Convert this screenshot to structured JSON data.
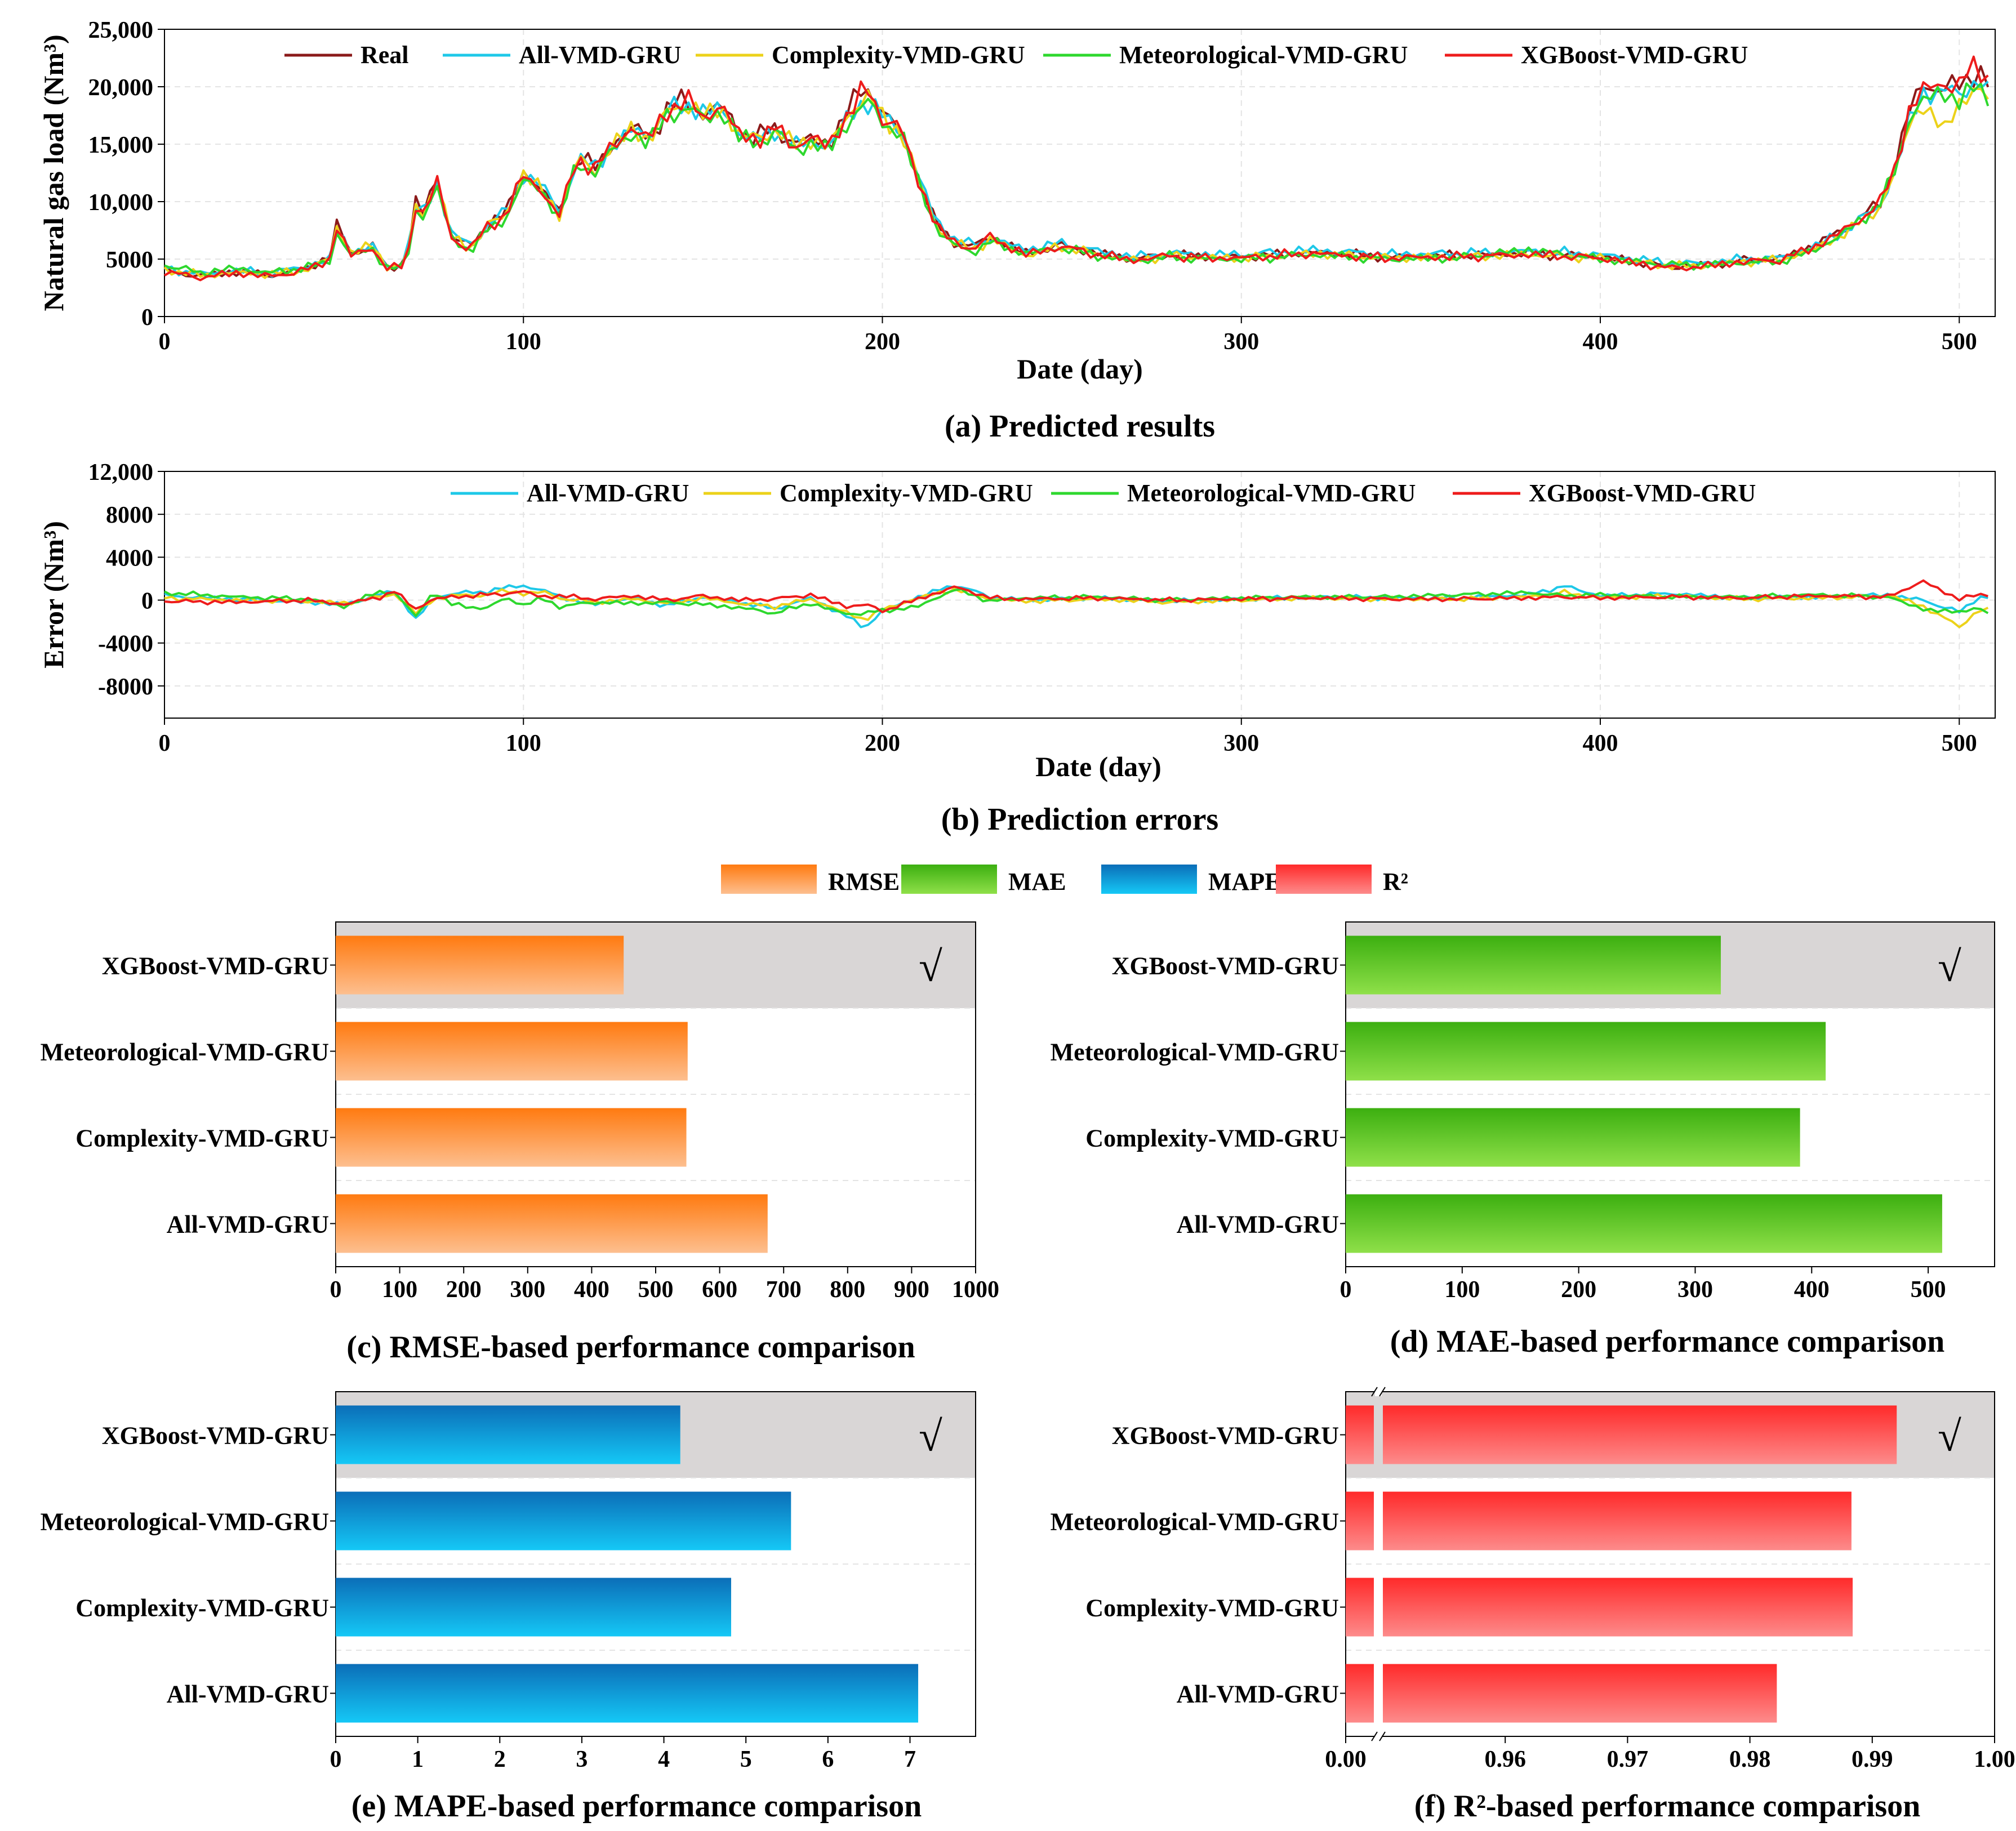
{
  "chart_data": [
    {
      "type": "line",
      "caption": "(a) Predicted results",
      "xlabel": "Date (day)",
      "ylabel": "Natural gas load (Nm³)",
      "xlim": [
        0,
        510
      ],
      "ylim": [
        0,
        25000
      ],
      "xticks": [
        "0",
        "100",
        "200",
        "300",
        "400",
        "500"
      ],
      "yticks": [
        "0",
        "5000",
        "10,000",
        "15,000",
        "20,000",
        "25,000"
      ],
      "legend_position": "top",
      "anchor_x": [
        0,
        10,
        20,
        30,
        40,
        46,
        48,
        52,
        58,
        62,
        66,
        68,
        70,
        72,
        76,
        80,
        85,
        90,
        95,
        100,
        104,
        110,
        115,
        120,
        125,
        130,
        135,
        140,
        145,
        150,
        155,
        160,
        165,
        170,
        175,
        180,
        185,
        190,
        195,
        200,
        205,
        210,
        215,
        220,
        225,
        230,
        240,
        250,
        260,
        270,
        280,
        290,
        300,
        320,
        340,
        360,
        380,
        400,
        420,
        430,
        440,
        450,
        460,
        470,
        478,
        482,
        486,
        490,
        496,
        500,
        505,
        508
      ],
      "series": [
        {
          "name": "Real",
          "color": "#8b1a1a",
          "values": [
            4000,
            3500,
            3900,
            3600,
            4200,
            5200,
            8000,
            5500,
            6200,
            4200,
            4500,
            6000,
            10000,
            9000,
            12000,
            7000,
            6000,
            8000,
            9000,
            12500,
            11500,
            9000,
            14000,
            13000,
            15000,
            16500,
            15500,
            18000,
            19000,
            17500,
            18500,
            16000,
            15500,
            16500,
            15000,
            15500,
            15000,
            17500,
            20500,
            17500,
            16500,
            12000,
            8000,
            6500,
            6000,
            7000,
            5500,
            6200,
            5500,
            5000,
            5400,
            5200,
            5200,
            5600,
            5200,
            5300,
            5500,
            5200,
            4300,
            4500,
            4900,
            5000,
            6200,
            8000,
            10000,
            13000,
            18000,
            20000,
            20000,
            20000,
            21500,
            20500
          ]
        },
        {
          "name": "All-VMD-GRU",
          "color": "#1ec8e8",
          "values": [
            4200,
            3700,
            4000,
            3800,
            4400,
            5000,
            7500,
            5700,
            6000,
            4500,
            4400,
            6200,
            9500,
            9200,
            11500,
            7200,
            6200,
            7800,
            9200,
            12200,
            11800,
            9200,
            13500,
            13200,
            14800,
            16200,
            15800,
            17800,
            18600,
            17700,
            18200,
            16100,
            15200,
            16400,
            14800,
            15300,
            14700,
            17000,
            19000,
            17400,
            16400,
            12300,
            8200,
            6800,
            6200,
            6800,
            5800,
            6400,
            5700,
            5200,
            5500,
            5400,
            5400,
            5800,
            5400,
            5500,
            5700,
            5400,
            4600,
            4700,
            5000,
            5100,
            6100,
            7800,
            9800,
            12500,
            17000,
            19500,
            19500,
            19500,
            20500,
            19500
          ]
        },
        {
          "name": "Complexity-VMD-GRU",
          "color": "#ecd21a",
          "values": [
            4100,
            3600,
            3800,
            3700,
            4100,
            5100,
            7700,
            5600,
            6100,
            4400,
            4300,
            5900,
            9700,
            8900,
            11700,
            6900,
            5900,
            7900,
            8800,
            12300,
            11400,
            8900,
            13700,
            12800,
            14900,
            16300,
            15400,
            17700,
            18700,
            17400,
            18300,
            15900,
            15400,
            16300,
            14900,
            15400,
            14800,
            17200,
            19500,
            17300,
            16200,
            12000,
            7800,
            6400,
            5800,
            6700,
            5300,
            6100,
            5400,
            4900,
            5300,
            5100,
            5100,
            5500,
            5100,
            5200,
            5400,
            5100,
            4400,
            4400,
            4800,
            4900,
            5900,
            7600,
            9600,
            12300,
            16800,
            18500,
            16000,
            19000,
            19500,
            19000
          ]
        },
        {
          "name": "Meteorological-VMD-GRU",
          "color": "#2ed82e",
          "values": [
            4500,
            3800,
            4200,
            3800,
            4300,
            4800,
            7200,
            5400,
            5800,
            4300,
            4200,
            5700,
            9200,
            8700,
            11200,
            6800,
            5700,
            7500,
            8500,
            11800,
            11200,
            8800,
            13200,
            12700,
            14500,
            15900,
            15200,
            17400,
            18300,
            17200,
            17900,
            15700,
            15000,
            16100,
            14600,
            15000,
            14500,
            16700,
            18800,
            17000,
            16000,
            11800,
            7600,
            6200,
            5600,
            6500,
            5500,
            6000,
            5300,
            4800,
            5200,
            5000,
            5000,
            5400,
            5000,
            5100,
            5800,
            5000,
            4500,
            4500,
            4700,
            4800,
            5800,
            7700,
            9900,
            12600,
            17200,
            19000,
            19200,
            19200,
            19800,
            19000
          ]
        },
        {
          "name": "XGBoost-VMD-GRU",
          "color": "#ee1c1c",
          "values": [
            3900,
            3400,
            3800,
            3500,
            4100,
            5000,
            7800,
            5300,
            6000,
            4100,
            4400,
            5900,
            9800,
            8800,
            11800,
            6800,
            5800,
            7800,
            8800,
            12300,
            11300,
            8800,
            13800,
            12900,
            14900,
            16400,
            15400,
            17900,
            18900,
            17400,
            18400,
            15900,
            15400,
            16400,
            14900,
            15400,
            14900,
            17300,
            20000,
            17400,
            16400,
            11900,
            7900,
            6400,
            5900,
            6900,
            5400,
            6100,
            5400,
            4900,
            5300,
            5100,
            5100,
            5500,
            5100,
            5200,
            5400,
            5100,
            4200,
            4400,
            4800,
            4900,
            6100,
            7900,
            9900,
            12900,
            17800,
            19800,
            20200,
            20300,
            21800,
            20800
          ]
        }
      ]
    },
    {
      "type": "line",
      "caption": "(b) Prediction errors",
      "xlabel": "Date (day)",
      "ylabel": "Error (Nm³)",
      "xlim": [
        0,
        510
      ],
      "ylim": [
        -11000,
        12000
      ],
      "xticks": [
        "0",
        "100",
        "200",
        "300",
        "400",
        "500"
      ],
      "yticks": [
        "-8000",
        "-4000",
        "0",
        "4000",
        "8000",
        "12,000"
      ],
      "legend_position": "top",
      "anchor_x": [
        0,
        20,
        40,
        50,
        60,
        64,
        70,
        75,
        80,
        90,
        95,
        100,
        105,
        110,
        120,
        130,
        140,
        150,
        160,
        170,
        180,
        190,
        195,
        200,
        210,
        220,
        225,
        230,
        240,
        260,
        280,
        300,
        320,
        340,
        360,
        380,
        390,
        400,
        420,
        440,
        460,
        480,
        485,
        490,
        495,
        500,
        505,
        508
      ],
      "series": [
        {
          "name": "All-VMD-GRU",
          "color": "#1ec8e8",
          "values": [
            400,
            100,
            -200,
            -400,
            500,
            900,
            -1800,
            200,
            600,
            800,
            1200,
            1300,
            1000,
            300,
            -400,
            200,
            -500,
            300,
            -200,
            -800,
            200,
            -1500,
            -2600,
            -1000,
            300,
            1400,
            900,
            300,
            0,
            200,
            -100,
            100,
            300,
            200,
            200,
            500,
            1300,
            400,
            600,
            200,
            300,
            500,
            200,
            0,
            -600,
            -1100,
            200,
            300
          ]
        },
        {
          "name": "Complexity-VMD-GRU",
          "color": "#ecd21a",
          "values": [
            200,
            0,
            -100,
            -300,
            300,
            600,
            -1200,
            100,
            400,
            500,
            900,
            600,
            800,
            200,
            -200,
            100,
            -300,
            200,
            -300,
            -600,
            100,
            -1200,
            -1800,
            -900,
            200,
            1000,
            600,
            100,
            -100,
            100,
            -200,
            0,
            200,
            100,
            100,
            300,
            700,
            200,
            400,
            100,
            200,
            400,
            0,
            -600,
            -1500,
            -2500,
            -1000,
            -900
          ]
        },
        {
          "name": "Meteorological-VMD-GRU",
          "color": "#2ed82e",
          "values": [
            700,
            300,
            100,
            -600,
            800,
            700,
            -1500,
            800,
            -400,
            -800,
            300,
            -500,
            200,
            -600,
            -200,
            -300,
            -200,
            -400,
            -700,
            -1200,
            -300,
            -1300,
            -1200,
            -1000,
            -600,
            1000,
            500,
            -100,
            200,
            300,
            0,
            200,
            300,
            300,
            500,
            700,
            400,
            500,
            300,
            300,
            500,
            300,
            -300,
            -800,
            -1100,
            -1000,
            -800,
            -1200
          ]
        },
        {
          "name": "XGBoost-VMD-GRU",
          "color": "#ee1c1c",
          "values": [
            -100,
            -200,
            0,
            -400,
            300,
            800,
            -800,
            100,
            300,
            500,
            600,
            800,
            300,
            400,
            100,
            400,
            0,
            400,
            0,
            100,
            500,
            -600,
            -400,
            -1000,
            100,
            1200,
            800,
            200,
            100,
            200,
            0,
            100,
            200,
            100,
            100,
            200,
            300,
            200,
            300,
            200,
            400,
            300,
            1000,
            1800,
            800,
            200,
            400,
            500
          ]
        }
      ]
    },
    {
      "type": "bar",
      "orientation": "horizontal",
      "caption": "(c) RMSE-based performance comparison",
      "metric": "RMSE",
      "categories": [
        "XGBoost-VMD-GRU",
        "Meteorological-VMD-GRU",
        "Complexity-VMD-GRU",
        "All-VMD-GRU"
      ],
      "values": [
        450,
        550,
        548,
        675
      ],
      "xlim": [
        0,
        1000
      ],
      "xticks": [
        "0",
        "100",
        "200",
        "300",
        "400",
        "500",
        "600",
        "700",
        "800",
        "900",
        "1000"
      ],
      "best_category": "XGBoost-VMD-GRU",
      "best_mark": "√",
      "color_top": "#ff7a10",
      "color_bottom": "#fdbf8f"
    },
    {
      "type": "bar",
      "orientation": "horizontal",
      "caption": "(d) MAE-based performance comparison",
      "metric": "MAE",
      "categories": [
        "XGBoost-VMD-GRU",
        "Meteorological-VMD-GRU",
        "Complexity-VMD-GRU",
        "All-VMD-GRU"
      ],
      "values": [
        322,
        412,
        390,
        512
      ],
      "xlim": [
        0,
        557
      ],
      "xticks": [
        "0",
        "100",
        "200",
        "300",
        "400",
        "500"
      ],
      "best_category": "XGBoost-VMD-GRU",
      "best_mark": "√",
      "color_top": "#3caf10",
      "color_bottom": "#8fe049"
    },
    {
      "type": "bar",
      "orientation": "horizontal",
      "caption": "(e) MAPE-based performance comparison",
      "metric": "MAPE",
      "categories": [
        "XGBoost-VMD-GRU",
        "Meteorological-VMD-GRU",
        "Complexity-VMD-GRU",
        "All-VMD-GRU"
      ],
      "values": [
        4.2,
        5.55,
        4.82,
        7.1
      ],
      "xlim": [
        0,
        7.8
      ],
      "xticks": [
        "0",
        "1",
        "2",
        "3",
        "4",
        "5",
        "6",
        "7"
      ],
      "best_category": "XGBoost-VMD-GRU",
      "best_mark": "√",
      "color_top": "#0b6eb8",
      "color_bottom": "#15c8f6"
    },
    {
      "type": "bar",
      "orientation": "horizontal",
      "caption": "(f) R²-based performance comparison",
      "metric": "R²",
      "axis_break": true,
      "categories": [
        "XGBoost-VMD-GRU",
        "Meteorological-VMD-GRU",
        "Complexity-VMD-GRU",
        "All-VMD-GRU"
      ],
      "values": [
        0.992,
        0.9883,
        0.9884,
        0.9822
      ],
      "break_range": [
        0.0,
        0.95
      ],
      "xlim": [
        0.95,
        1.0
      ],
      "xticks": [
        "0.00",
        "0.96",
        "0.97",
        "0.98",
        "0.99",
        "1.00"
      ],
      "best_category": "XGBoost-VMD-GRU",
      "best_mark": "√",
      "color_top": "#ff2a2a",
      "color_bottom": "#fd8b8b"
    }
  ],
  "shared_legend": [
    {
      "label": "RMSE",
      "top": "#ff7a10",
      "bottom": "#fdbf8f"
    },
    {
      "label": "MAE",
      "top": "#3caf10",
      "bottom": "#8fe049"
    },
    {
      "label": "MAPE",
      "top": "#0b6eb8",
      "bottom": "#15c8f6"
    },
    {
      "label": "R²",
      "top": "#ff2a2a",
      "bottom": "#fd8b8b"
    }
  ]
}
